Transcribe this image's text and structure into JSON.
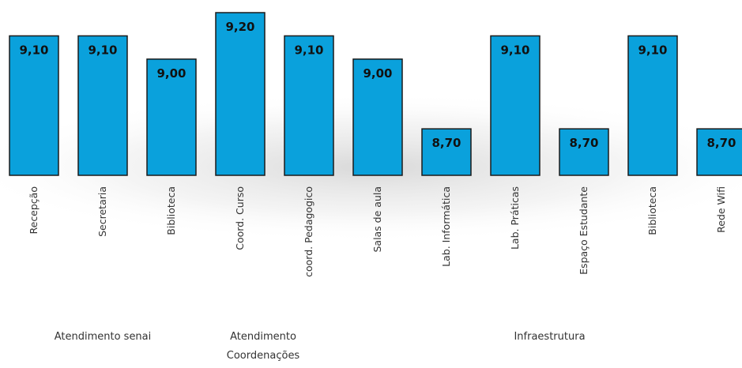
{
  "chart_data": {
    "type": "bar",
    "categories": [
      "Recepção",
      "Secretaria",
      "Biblioteca",
      "Coord. Curso",
      "coord. Pedagogico",
      "Salas de aula",
      "Lab. Informática",
      "Lab. Práticas",
      "Espaço Estudante",
      "Biblioteca",
      "Rede Wifi"
    ],
    "values": [
      9.1,
      9.1,
      9.0,
      9.2,
      9.1,
      9.0,
      8.7,
      9.1,
      8.7,
      9.1,
      8.7
    ],
    "value_labels": [
      "9,10",
      "9,10",
      "9,00",
      "9,20",
      "9,10",
      "9,00",
      "8,70",
      "9,10",
      "8,70",
      "9,10",
      "8,70"
    ],
    "groups": [
      {
        "label": "Atendimento senai",
        "lines": [
          "Atendimento senai"
        ],
        "categories": [
          0,
          2
        ]
      },
      {
        "label": "Atendimento Coordenações",
        "lines": [
          "Atendimento",
          "Coordenações"
        ],
        "categories": [
          3,
          4
        ]
      },
      {
        "label": "Infraestrutura",
        "lines": [
          "Infraestrutura"
        ],
        "categories": [
          5,
          10
        ]
      }
    ],
    "ylim": [
      8.5,
      9.2
    ],
    "bar_color": "#0aa1dc",
    "title": "",
    "xlabel": "",
    "ylabel": "",
    "grid": false,
    "legend": "none"
  }
}
